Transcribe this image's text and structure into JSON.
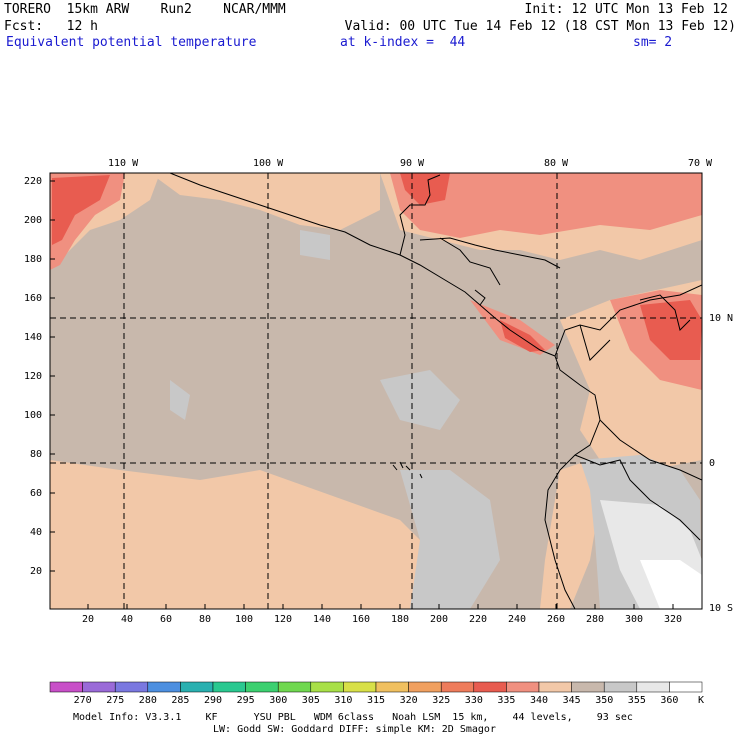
{
  "header": {
    "line1_left": "TORERO  15km ARW    Run2    NCAR/MMM",
    "line1_right": "Init: 12 UTC Mon 13 Feb 12",
    "line2_left": "Fcst:   12 h",
    "line2_right": "Valid: 00 UTC Tue 14 Feb 12 (18 CST Mon 13 Feb 12)",
    "line3_left": "Equivalent potential temperature",
    "line3_mid": "at k-index =  44",
    "line3_right": "sm= 2"
  },
  "map": {
    "lon_labels": [
      "110 W",
      "100 W",
      "90 W",
      "80 W",
      "70 W"
    ],
    "lat_labels": [
      "10 N",
      "0",
      "10 S"
    ],
    "y_ticks": [
      "220",
      "200",
      "180",
      "160",
      "140",
      "120",
      "100",
      "80",
      "60",
      "40",
      "20"
    ],
    "x_ticks": [
      "20",
      "40",
      "60",
      "80",
      "100",
      "120",
      "140",
      "160",
      "180",
      "200",
      "220",
      "240",
      "260",
      "280",
      "300",
      "320"
    ]
  },
  "colorbar": {
    "levels": [
      "270",
      "275",
      "280",
      "285",
      "290",
      "295",
      "300",
      "305",
      "310",
      "315",
      "320",
      "325",
      "330",
      "335",
      "340",
      "345",
      "350",
      "355",
      "360"
    ],
    "unit": "K",
    "colors": [
      "#c84fc8",
      "#9a6ad8",
      "#7a78e0",
      "#4d8fe0",
      "#2ab0b0",
      "#2ac890",
      "#3cd070",
      "#70d850",
      "#a8e048",
      "#d8e048",
      "#f0c060",
      "#f0a060",
      "#ee7c5c",
      "#e85c50",
      "#f09080",
      "#f2c8a8",
      "#c8b8ac",
      "#c8c8c8",
      "#e8e8e8",
      "#ffffff"
    ]
  },
  "footer": {
    "line1": "Model Info: V3.3.1    KF      YSU PBL   WDM 6class   Noah LSM  15 km,    44 levels,    93 sec",
    "line2": "LW: Godd SW: Goddard DIFF: simple KM: 2D Smagor"
  }
}
